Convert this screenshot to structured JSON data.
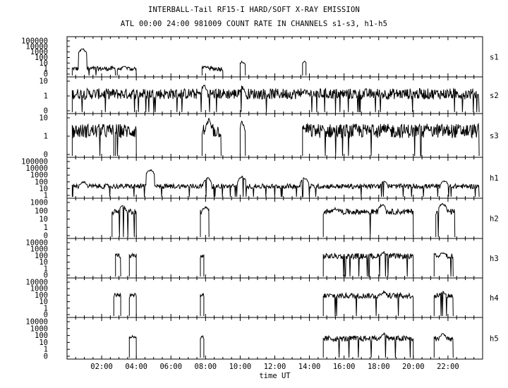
{
  "header": {
    "title": "INTERBALL-Tail RF15-I HARD/SOFT X-RAY EMISSION",
    "subtitle": "ATL 00:00 24:00 981009  COUNT RATE IN CHANNELS s1-s3, h1-h5"
  },
  "chart_data": {
    "type": "line",
    "title": "INTERBALL-Tail RF15-I HARD/SOFT X-RAY EMISSION",
    "subtitle": "ATL 00:00 24:00 981009  COUNT RATE IN CHANNELS s1-s3, h1-h5",
    "xlabel": "time UT",
    "xlim_hours": [
      0,
      24
    ],
    "x_ticks_hours": [
      2,
      4,
      6,
      8,
      10,
      12,
      14,
      16,
      18,
      20,
      22
    ],
    "x_tick_labels": [
      "02:00",
      "04:00",
      "06:00",
      "08:00",
      "10:00",
      "12:00",
      "14:00",
      "16:00",
      "18:00",
      "20:00",
      "22:00"
    ],
    "y_scale": "log",
    "panels": [
      {
        "name": "s1",
        "y_tick_labels": [
          "100000",
          "10000",
          "1000",
          "100",
          "10",
          "1",
          "0"
        ],
        "ylim": [
          0.3,
          100000
        ],
        "base_level": 3,
        "segments": [
          [
            0.3,
            2.8
          ],
          [
            2.9,
            4.0
          ],
          [
            7.8,
            9.0
          ],
          [
            10.0,
            10.3
          ],
          [
            13.6,
            13.8
          ]
        ],
        "peaks": [
          [
            0.9,
            3000
          ],
          [
            3.3,
            8
          ],
          [
            8.0,
            8
          ],
          [
            10.1,
            40
          ],
          [
            13.7,
            40
          ]
        ]
      },
      {
        "name": "s2",
        "y_tick_labels": [
          "10",
          "1",
          "0"
        ],
        "ylim": [
          0.2,
          30
        ],
        "base_level": 3,
        "segments": [
          [
            0.3,
            23.8
          ]
        ],
        "peaks": [
          [
            7.9,
            12
          ],
          [
            10.1,
            10
          ],
          [
            13.7,
            6
          ]
        ]
      },
      {
        "name": "s3",
        "y_tick_labels": [
          "10",
          "1",
          "0"
        ],
        "ylim": [
          0.3,
          30
        ],
        "base_level": 5,
        "segments": [
          [
            0.3,
            2.7
          ],
          [
            2.8,
            4.0
          ],
          [
            7.8,
            8.9
          ],
          [
            10.0,
            10.3
          ],
          [
            13.6,
            23.8
          ]
        ],
        "peaks": [
          [
            8.2,
            20
          ],
          [
            10.1,
            15
          ],
          [
            13.7,
            8
          ],
          [
            17.6,
            9
          ],
          [
            20.8,
            10
          ]
        ]
      },
      {
        "name": "h1",
        "y_tick_labels": [
          "100000",
          "10000",
          "1000",
          "100",
          "10",
          "1"
        ],
        "ylim": [
          0.3,
          100000
        ],
        "base_level": 10,
        "segments": [
          [
            0.3,
            23.8
          ]
        ],
        "peaks": [
          [
            0.95,
            60
          ],
          [
            4.8,
            3000
          ],
          [
            8.1,
            200
          ],
          [
            10.1,
            300
          ],
          [
            13.7,
            200
          ],
          [
            18.3,
            60
          ],
          [
            21.8,
            80
          ]
        ]
      },
      {
        "name": "h2",
        "y_tick_labels": [
          "1000",
          "100",
          "10",
          "1",
          "0"
        ],
        "ylim": [
          0.02,
          1000
        ],
        "base_level": 30,
        "segments": [
          [
            2.6,
            4.0
          ],
          [
            7.7,
            8.2
          ],
          [
            14.8,
            20.0
          ],
          [
            21.3,
            22.4
          ]
        ],
        "peaks": [
          [
            3.2,
            200
          ],
          [
            8.0,
            150
          ],
          [
            15.5,
            100
          ],
          [
            18.2,
            300
          ],
          [
            21.7,
            400
          ]
        ]
      },
      {
        "name": "h3",
        "y_tick_labels": [
          "10000",
          "1000",
          "100",
          "10",
          "1",
          "0"
        ],
        "ylim": [
          0.2,
          10000
        ],
        "base_level": 80,
        "segments": [
          [
            2.8,
            3.1
          ],
          [
            3.6,
            4.0
          ],
          [
            7.7,
            7.9
          ],
          [
            14.8,
            20.0
          ],
          [
            21.2,
            22.3
          ]
        ],
        "peaks": [
          [
            3.0,
            100
          ],
          [
            3.8,
            120
          ],
          [
            18.3,
            300
          ],
          [
            21.7,
            300
          ]
        ]
      },
      {
        "name": "h4",
        "y_tick_labels": [
          "10000",
          "1000",
          "100",
          "10",
          "1",
          "0"
        ],
        "ylim": [
          0.2,
          10000
        ],
        "base_level": 80,
        "segments": [
          [
            2.7,
            3.1
          ],
          [
            3.6,
            4.0
          ],
          [
            7.7,
            7.9
          ],
          [
            14.8,
            20.0
          ],
          [
            21.2,
            22.3
          ]
        ],
        "peaks": [
          [
            3.0,
            100
          ],
          [
            3.8,
            120
          ],
          [
            18.3,
            300
          ],
          [
            21.7,
            300
          ]
        ]
      },
      {
        "name": "h5",
        "y_tick_labels": [
          "10000",
          "1000",
          "100",
          "10",
          "1",
          "0"
        ],
        "ylim": [
          0.2,
          10000
        ],
        "base_level": 40,
        "segments": [
          [
            3.6,
            4.0
          ],
          [
            7.7,
            7.9
          ],
          [
            14.8,
            20.0
          ],
          [
            21.2,
            22.3
          ]
        ],
        "peaks": [
          [
            3.8,
            100
          ],
          [
            18.3,
            200
          ],
          [
            21.7,
            200
          ]
        ]
      }
    ]
  }
}
